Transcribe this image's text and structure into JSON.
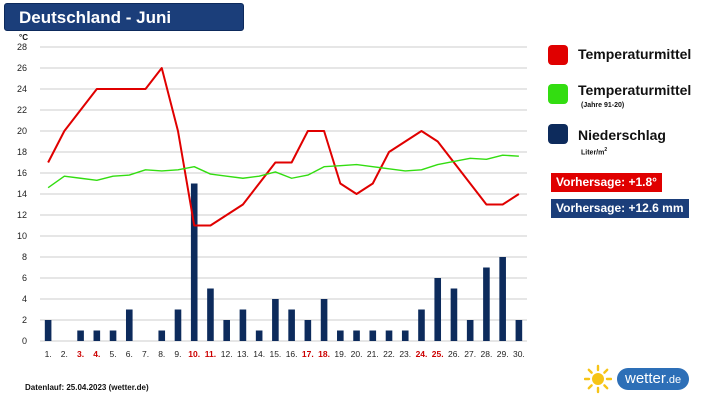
{
  "title": "Deutschland - Juni",
  "colors": {
    "temp": "#e00000",
    "normal": "#33dd11",
    "precip": "#0d2b5c",
    "title_bg": "#1b3e7a",
    "weekend": "#cc0000",
    "brand": "#2d6fb7",
    "sun": "#f6c417"
  },
  "legend": {
    "temp_label": "Temperaturmittel",
    "normal_label": "Temperaturmittel",
    "normal_sub": "(Jahre 91-20)",
    "precip_label": "Niederschlag",
    "precip_unit_base": "Liter/m",
    "precip_unit_sup": "2"
  },
  "badges": {
    "temp_forecast": "Vorhersage: +1.8°",
    "precip_forecast": "Vorhersage: +12.6 mm"
  },
  "footer": {
    "source_note": "Datenlauf: 25.04.2023 (wetter.de)"
  },
  "brand": {
    "name": "wetter",
    "tld": ".de",
    "logo_icon": "sun-icon"
  },
  "chart_data": {
    "type": "bar+line",
    "ylabel": "°C",
    "ylim": [
      0,
      28
    ],
    "yticks": [
      0,
      2,
      4,
      6,
      8,
      10,
      12,
      14,
      16,
      18,
      20,
      22,
      24,
      26,
      28
    ],
    "grid": true,
    "categories": [
      "1.",
      "2.",
      "3.",
      "4.",
      "5.",
      "6.",
      "7.",
      "8.",
      "9.",
      "10.",
      "11.",
      "12.",
      "13.",
      "14.",
      "15.",
      "16.",
      "17.",
      "18.",
      "19.",
      "20.",
      "21.",
      "22.",
      "23.",
      "24.",
      "25.",
      "26.",
      "27.",
      "28.",
      "29.",
      "30."
    ],
    "weekend_days": [
      3,
      4,
      10,
      11,
      17,
      18,
      24,
      25
    ],
    "series": [
      {
        "name": "Niederschlag",
        "type": "bar",
        "values": [
          2,
          0,
          1,
          1,
          1,
          3,
          0,
          1,
          3,
          15,
          5,
          2,
          3,
          1,
          4,
          3,
          2,
          4,
          1,
          1,
          1,
          1,
          1,
          3,
          6,
          5,
          2,
          7,
          8,
          2
        ]
      },
      {
        "name": "Temperaturmittel",
        "type": "line",
        "values": [
          17,
          20,
          22,
          24,
          24,
          24,
          24,
          26,
          20,
          11,
          11,
          12,
          13,
          15,
          17,
          17,
          20,
          20,
          15,
          14,
          15,
          18,
          19,
          20,
          19,
          17,
          15,
          13,
          13,
          14
        ]
      },
      {
        "name": "Temperaturmittel (Jahre 91-20)",
        "type": "line",
        "values": [
          14.6,
          15.7,
          15.5,
          15.3,
          15.7,
          15.8,
          16.3,
          16.2,
          16.3,
          16.6,
          15.9,
          15.7,
          15.5,
          15.7,
          16.1,
          15.5,
          15.8,
          16.6,
          16.7,
          16.8,
          16.6,
          16.4,
          16.2,
          16.3,
          16.8,
          17.1,
          17.4,
          17.3,
          17.7,
          17.6
        ]
      }
    ]
  }
}
